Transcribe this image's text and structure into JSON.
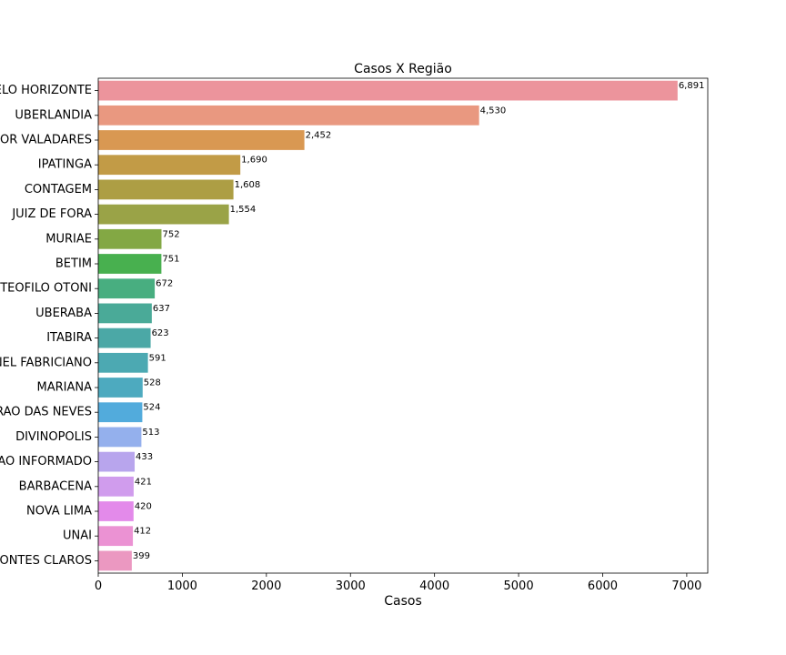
{
  "chart_data": {
    "type": "bar",
    "orientation": "horizontal",
    "title": "Casos X Região",
    "xlabel": "Casos",
    "ylabel": "",
    "xlim": [
      0,
      7250
    ],
    "xticks": [
      0,
      1000,
      2000,
      3000,
      4000,
      5000,
      6000,
      7000
    ],
    "xtick_labels": [
      "0",
      "1000",
      "2000",
      "3000",
      "4000",
      "5000",
      "6000",
      "7000"
    ],
    "grid": false,
    "categories": [
      "ELO HORIZONTE",
      "UBERLANDIA",
      "OR VALADARES",
      "IPATINGA",
      "CONTAGEM",
      "JUIZ DE FORA",
      "MURIAE",
      "BETIM",
      "TEOFILO OTONI",
      "UBERABA",
      "ITABIRA",
      "NEL FABRICIANO",
      "MARIANA",
      "RAO DAS NEVES",
      "DIVINOPOLIS",
      "AO INFORMADO",
      "BARBACENA",
      "NOVA LIMA",
      "UNAI",
      "ONTES CLAROS"
    ],
    "values": [
      6891,
      4530,
      2452,
      1690,
      1608,
      1554,
      752,
      751,
      672,
      637,
      623,
      591,
      528,
      524,
      513,
      433,
      421,
      420,
      412,
      399
    ],
    "value_labels": [
      "6,891",
      "4,530",
      "2,452",
      "1,690",
      "1,608",
      "1,554",
      "752",
      "751",
      "672",
      "637",
      "623",
      "591",
      "528",
      "524",
      "513",
      "433",
      "421",
      "420",
      "412",
      "399"
    ],
    "colors": [
      "#ec949c",
      "#e99880",
      "#d99852",
      "#c29b46",
      "#ad9e44",
      "#9aa347",
      "#83a844",
      "#48b04f",
      "#48ae80",
      "#4aaa98",
      "#4ba8a6",
      "#4ca9b2",
      "#4daabf",
      "#52abdc",
      "#94b0ed",
      "#b8a5ed",
      "#d09ced",
      "#e38aea",
      "#eb92d3",
      "#eb98c1"
    ]
  }
}
